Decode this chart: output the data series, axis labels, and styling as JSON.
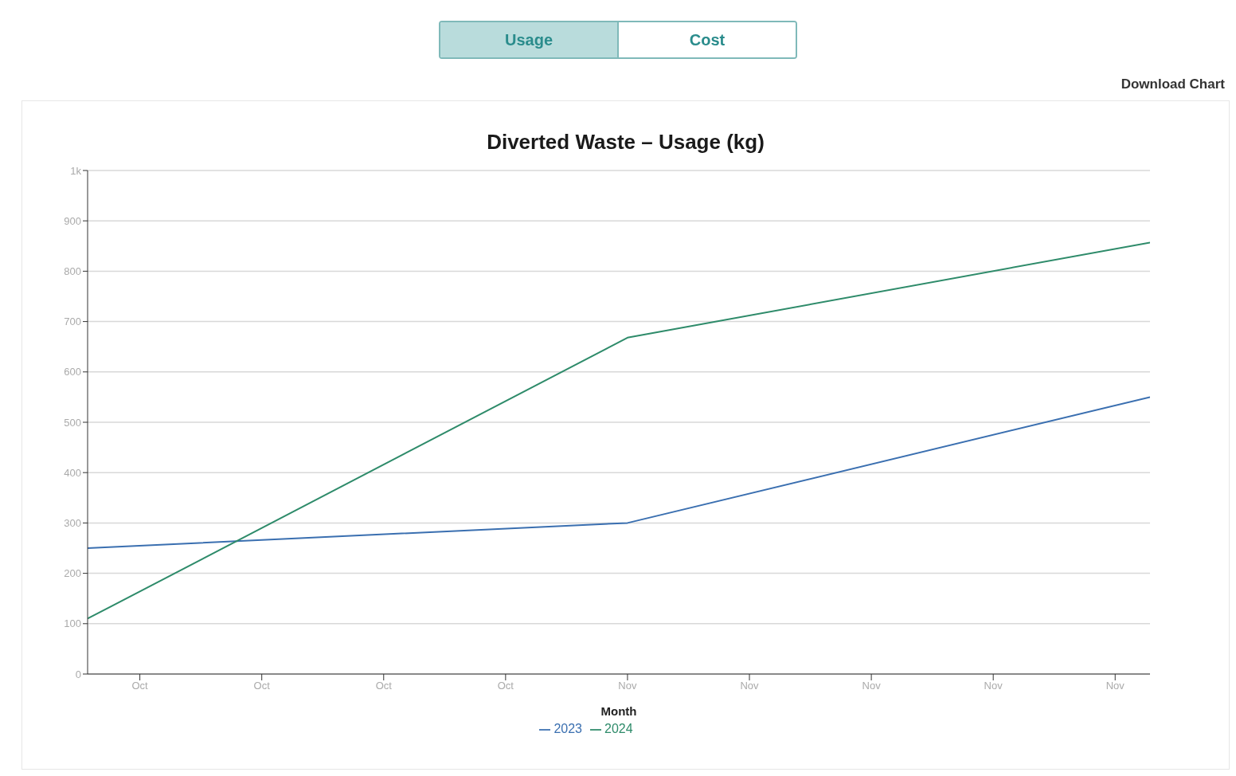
{
  "chart_data": {
    "type": "line",
    "title": "Diverted Waste – Usage (kg)",
    "xlabel": "Month",
    "annotations": [
      "Usage",
      "Cost",
      "Download Chart"
    ],
    "x": [
      "--10-01",
      "--11-01",
      "--12-01"
    ],
    "series": [
      {
        "name": "2023",
        "color": "#3a6fb0",
        "values": [
          250,
          300,
          550
        ]
      },
      {
        "name": "2024",
        "color": "#2e8b6a",
        "values": [
          110,
          668,
          857
        ]
      }
    ],
    "xlim": [
      "--10-01",
      "--12-01"
    ],
    "xticks": [
      {
        "value": "--10-04",
        "label": "Oct"
      },
      {
        "value": "--10-11",
        "label": "Oct"
      },
      {
        "value": "--10-18",
        "label": "Oct"
      },
      {
        "value": "--10-25",
        "label": "Oct"
      },
      {
        "value": "--11-01",
        "label": "Nov"
      },
      {
        "value": "--11-08",
        "label": "Nov"
      },
      {
        "value": "--11-15",
        "label": "Nov"
      },
      {
        "value": "--11-22",
        "label": "Nov"
      },
      {
        "value": "--11-29",
        "label": "Nov"
      }
    ],
    "ylim": [
      0,
      1000
    ],
    "yticks": [
      0,
      100,
      200,
      300,
      400,
      500,
      600,
      700,
      800,
      900,
      {
        "value": 1000,
        "label": "1k"
      }
    ],
    "grid": "y",
    "legend": "bottom",
    "marker": "none",
    "line_style": "solid"
  }
}
